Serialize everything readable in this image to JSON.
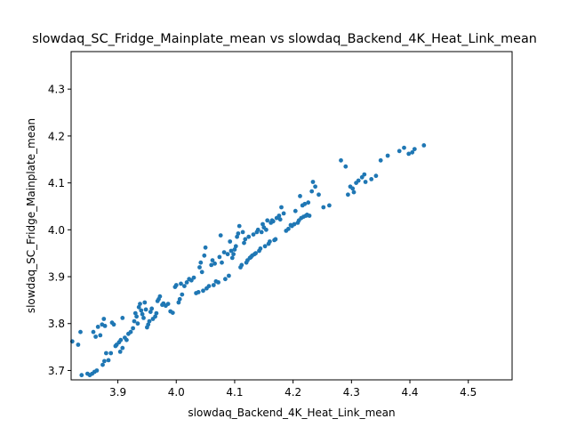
{
  "chart_data": {
    "type": "scatter",
    "title": "slowdaq_SC_Fridge_Mainplate_mean vs slowdaq_Backend_4K_Heat_Link_mean",
    "xlabel": "slowdaq_Backend_4K_Heat_Link_mean",
    "ylabel": "slowdaq_SC_Fridge_Mainplate_mean",
    "xlim": [
      3.82,
      4.575
    ],
    "ylim": [
      3.68,
      4.38
    ],
    "xticks": [
      3.9,
      4.0,
      4.1,
      4.2,
      4.3,
      4.4,
      4.5
    ],
    "yticks": [
      3.7,
      3.8,
      3.9,
      4.0,
      4.1,
      4.2,
      4.3
    ],
    "xtick_labels": [
      "3.9",
      "4.0",
      "4.1",
      "4.2",
      "4.3",
      "4.4",
      "4.5"
    ],
    "ytick_labels": [
      "3.7",
      "3.8",
      "3.9",
      "4.0",
      "4.1",
      "4.2",
      "4.3"
    ],
    "grid": false,
    "point_color": "#1f77b4",
    "points": [
      [
        3.822,
        3.762
      ],
      [
        3.832,
        3.755
      ],
      [
        3.836,
        3.782
      ],
      [
        3.838,
        3.69
      ],
      [
        3.848,
        3.693
      ],
      [
        3.852,
        3.69
      ],
      [
        3.856,
        3.693
      ],
      [
        3.86,
        3.697
      ],
      [
        3.864,
        3.7
      ],
      [
        3.858,
        3.782
      ],
      [
        3.862,
        3.772
      ],
      [
        3.866,
        3.793
      ],
      [
        3.87,
        3.775
      ],
      [
        3.873,
        3.798
      ],
      [
        3.876,
        3.81
      ],
      [
        3.878,
        3.795
      ],
      [
        3.874,
        3.712
      ],
      [
        3.877,
        3.72
      ],
      [
        3.88,
        3.737
      ],
      [
        3.884,
        3.722
      ],
      [
        3.888,
        3.737
      ],
      [
        3.89,
        3.802
      ],
      [
        3.893,
        3.798
      ],
      [
        3.896,
        3.752
      ],
      [
        3.898,
        3.755
      ],
      [
        3.902,
        3.76
      ],
      [
        3.905,
        3.765
      ],
      [
        3.904,
        3.74
      ],
      [
        3.908,
        3.748
      ],
      [
        3.908,
        3.812
      ],
      [
        3.912,
        3.77
      ],
      [
        3.915,
        3.765
      ],
      [
        3.918,
        3.778
      ],
      [
        3.922,
        3.782
      ],
      [
        3.926,
        3.79
      ],
      [
        3.928,
        3.805
      ],
      [
        3.93,
        3.822
      ],
      [
        3.932,
        3.815
      ],
      [
        3.934,
        3.8
      ],
      [
        3.936,
        3.835
      ],
      [
        3.938,
        3.842
      ],
      [
        3.94,
        3.828
      ],
      [
        3.942,
        3.82
      ],
      [
        3.944,
        3.812
      ],
      [
        3.946,
        3.845
      ],
      [
        3.948,
        3.83
      ],
      [
        3.95,
        3.792
      ],
      [
        3.952,
        3.798
      ],
      [
        3.954,
        3.805
      ],
      [
        3.956,
        3.825
      ],
      [
        3.958,
        3.832
      ],
      [
        3.96,
        3.81
      ],
      [
        3.964,
        3.815
      ],
      [
        3.966,
        3.822
      ],
      [
        3.968,
        3.848
      ],
      [
        3.97,
        3.852
      ],
      [
        3.972,
        3.858
      ],
      [
        3.976,
        3.84
      ],
      [
        3.978,
        3.843
      ],
      [
        3.982,
        3.838
      ],
      [
        3.986,
        3.842
      ],
      [
        3.99,
        3.826
      ],
      [
        3.994,
        3.823
      ],
      [
        3.998,
        3.878
      ],
      [
        4.0,
        3.882
      ],
      [
        4.004,
        3.845
      ],
      [
        4.006,
        3.852
      ],
      [
        4.008,
        3.885
      ],
      [
        4.01,
        3.862
      ],
      [
        4.014,
        3.88
      ],
      [
        4.018,
        3.888
      ],
      [
        4.022,
        3.895
      ],
      [
        4.026,
        3.892
      ],
      [
        4.03,
        3.898
      ],
      [
        4.034,
        3.865
      ],
      [
        4.038,
        3.867
      ],
      [
        4.04,
        3.92
      ],
      [
        4.042,
        3.93
      ],
      [
        4.044,
        3.91
      ],
      [
        4.046,
        3.87
      ],
      [
        4.048,
        3.945
      ],
      [
        4.05,
        3.962
      ],
      [
        4.052,
        3.875
      ],
      [
        4.056,
        3.88
      ],
      [
        4.06,
        3.925
      ],
      [
        4.062,
        3.935
      ],
      [
        4.064,
        3.882
      ],
      [
        4.066,
        3.928
      ],
      [
        4.068,
        3.89
      ],
      [
        4.072,
        3.888
      ],
      [
        4.074,
        3.942
      ],
      [
        4.076,
        3.988
      ],
      [
        4.078,
        3.93
      ],
      [
        4.082,
        3.952
      ],
      [
        4.084,
        3.895
      ],
      [
        4.088,
        3.948
      ],
      [
        4.09,
        3.902
      ],
      [
        4.092,
        3.975
      ],
      [
        4.094,
        3.955
      ],
      [
        4.096,
        3.94
      ],
      [
        4.098,
        3.948
      ],
      [
        4.1,
        3.958
      ],
      [
        4.102,
        3.965
      ],
      [
        4.104,
        3.985
      ],
      [
        4.106,
        3.992
      ],
      [
        4.108,
        4.008
      ],
      [
        4.11,
        3.92
      ],
      [
        4.112,
        3.925
      ],
      [
        4.114,
        3.995
      ],
      [
        4.116,
        3.972
      ],
      [
        4.118,
        3.98
      ],
      [
        4.12,
        3.93
      ],
      [
        4.122,
        3.935
      ],
      [
        4.124,
        3.985
      ],
      [
        4.126,
        3.94
      ],
      [
        4.128,
        3.942
      ],
      [
        4.13,
        3.945
      ],
      [
        4.132,
        3.99
      ],
      [
        4.134,
        3.948
      ],
      [
        4.136,
        3.95
      ],
      [
        4.138,
        3.995
      ],
      [
        4.14,
        4.0
      ],
      [
        4.142,
        3.955
      ],
      [
        4.144,
        3.96
      ],
      [
        4.146,
        3.995
      ],
      [
        4.148,
        4.012
      ],
      [
        4.15,
        4.005
      ],
      [
        4.152,
        3.965
      ],
      [
        4.154,
        4.0
      ],
      [
        4.156,
        4.02
      ],
      [
        4.158,
        3.97
      ],
      [
        4.16,
        3.975
      ],
      [
        4.162,
        4.015
      ],
      [
        4.164,
        4.02
      ],
      [
        4.166,
        4.018
      ],
      [
        4.168,
        3.978
      ],
      [
        4.17,
        3.98
      ],
      [
        4.172,
        4.025
      ],
      [
        4.176,
        4.03
      ],
      [
        4.178,
        4.022
      ],
      [
        4.18,
        4.048
      ],
      [
        4.184,
        4.035
      ],
      [
        4.188,
        3.998
      ],
      [
        4.192,
        4.002
      ],
      [
        4.196,
        4.01
      ],
      [
        4.198,
        4.008
      ],
      [
        4.202,
        4.012
      ],
      [
        4.204,
        4.04
      ],
      [
        4.208,
        4.015
      ],
      [
        4.21,
        4.02
      ],
      [
        4.212,
        4.072
      ],
      [
        4.214,
        4.025
      ],
      [
        4.216,
        4.052
      ],
      [
        4.218,
        4.028
      ],
      [
        4.22,
        4.055
      ],
      [
        4.222,
        4.03
      ],
      [
        4.224,
        4.032
      ],
      [
        4.226,
        4.058
      ],
      [
        4.228,
        4.03
      ],
      [
        4.232,
        4.082
      ],
      [
        4.234,
        4.102
      ],
      [
        4.238,
        4.092
      ],
      [
        4.244,
        4.075
      ],
      [
        4.252,
        4.048
      ],
      [
        4.262,
        4.052
      ],
      [
        4.282,
        4.148
      ],
      [
        4.29,
        4.135
      ],
      [
        4.294,
        4.075
      ],
      [
        4.298,
        4.092
      ],
      [
        4.302,
        4.088
      ],
      [
        4.304,
        4.08
      ],
      [
        4.308,
        4.1
      ],
      [
        4.312,
        4.105
      ],
      [
        4.318,
        4.112
      ],
      [
        4.322,
        4.118
      ],
      [
        4.324,
        4.102
      ],
      [
        4.334,
        4.108
      ],
      [
        4.342,
        4.115
      ],
      [
        4.35,
        4.148
      ],
      [
        4.362,
        4.158
      ],
      [
        4.382,
        4.168
      ],
      [
        4.39,
        4.175
      ],
      [
        4.398,
        4.162
      ],
      [
        4.404,
        4.165
      ],
      [
        4.408,
        4.172
      ],
      [
        4.424,
        4.18
      ]
    ]
  }
}
